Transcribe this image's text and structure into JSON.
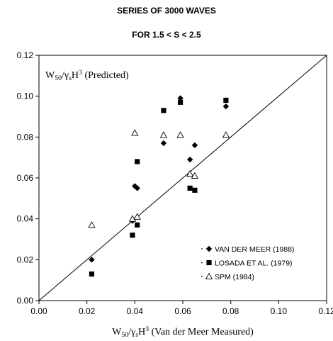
{
  "chart_data": {
    "type": "scatter",
    "title": "SERIES OF 3000 WAVES",
    "subtitle": "FOR 1.5 < S < 2.5",
    "xlabel": "W50/γsH3 (Van der Meer Measured)",
    "ylabel": "W50/γsH3 (Predicted)",
    "xlim": [
      0,
      0.12
    ],
    "ylim": [
      0,
      0.12
    ],
    "x_ticks": [
      "0.00",
      "0.02",
      "0.04",
      "0.06",
      "0.08",
      "0.10",
      "0.12"
    ],
    "y_ticks": [
      "0.00",
      "0.02",
      "0.04",
      "0.06",
      "0.08",
      "0.10",
      "0.12"
    ],
    "grid": false,
    "legend_position": "bottom-right",
    "reference_line": "y = x",
    "series": [
      {
        "name": "VAN DER MEER (1988)",
        "marker": "diamond",
        "points": [
          [
            0.022,
            0.02
          ],
          [
            0.039,
            0.039
          ],
          [
            0.04,
            0.056
          ],
          [
            0.041,
            0.055
          ],
          [
            0.052,
            0.077
          ],
          [
            0.059,
            0.099
          ],
          [
            0.063,
            0.069
          ],
          [
            0.065,
            0.076
          ],
          [
            0.078,
            0.095
          ]
        ]
      },
      {
        "name": "LOSADA ET AL. (1979)",
        "marker": "square",
        "points": [
          [
            0.022,
            0.013
          ],
          [
            0.039,
            0.032
          ],
          [
            0.041,
            0.037
          ],
          [
            0.041,
            0.068
          ],
          [
            0.052,
            0.093
          ],
          [
            0.059,
            0.097
          ],
          [
            0.063,
            0.055
          ],
          [
            0.065,
            0.054
          ],
          [
            0.078,
            0.098
          ]
        ]
      },
      {
        "name": "SPM (1984)",
        "marker": "triangle-open",
        "points": [
          [
            0.022,
            0.037
          ],
          [
            0.039,
            0.04
          ],
          [
            0.041,
            0.041
          ],
          [
            0.04,
            0.082
          ],
          [
            0.052,
            0.081
          ],
          [
            0.059,
            0.081
          ],
          [
            0.063,
            0.062
          ],
          [
            0.065,
            0.061
          ],
          [
            0.078,
            0.081
          ]
        ]
      }
    ]
  }
}
